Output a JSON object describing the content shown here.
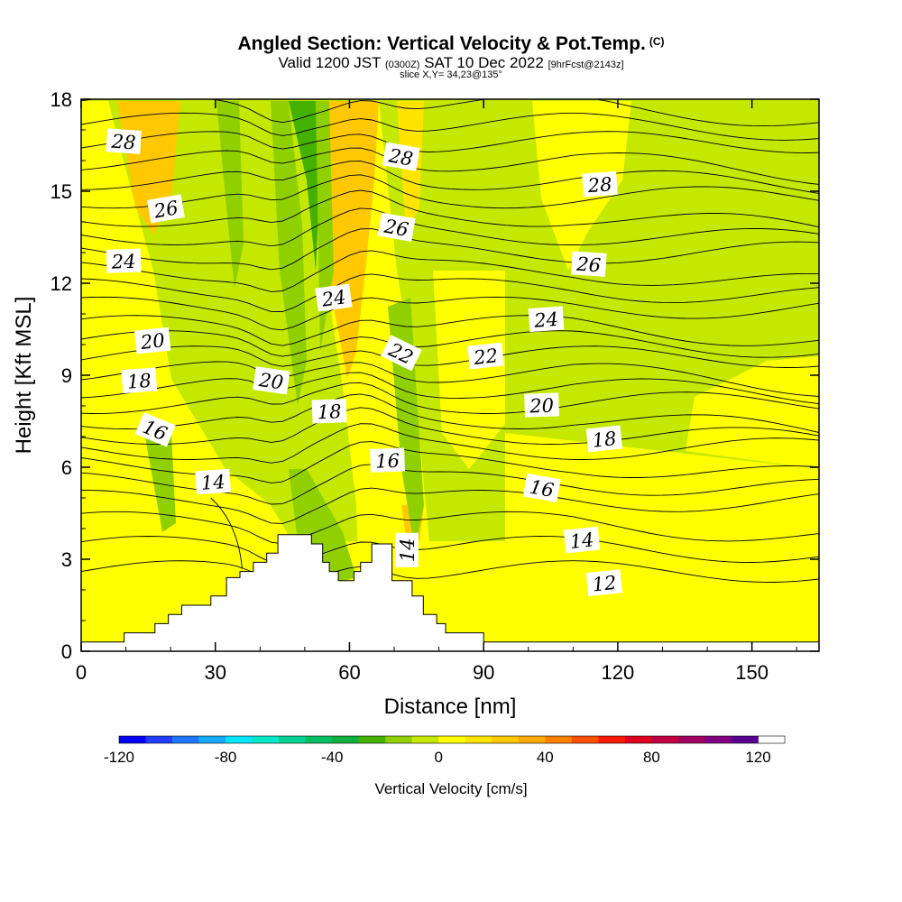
{
  "title": {
    "main": "Angled Section: Vertical Velocity & Pot.Temp.",
    "mark": "(C)",
    "valid_prefix": "Valid 1200 JST",
    "valid_utc": "(0300Z)",
    "valid_date": "SAT 10 Dec 2022",
    "forecast": "[9hrFcst@2143z]",
    "slice": "slice X,Y= 34,23@135°"
  },
  "colors": {
    "terrain": "#ffffff",
    "contour": "#000000",
    "colorbar": [
      "#0000ff",
      "#1f3cff",
      "#1e78ff",
      "#18aaff",
      "#00e6ff",
      "#00e8c6",
      "#00d090",
      "#00c060",
      "#10b040",
      "#44b000",
      "#90d000",
      "#c4e800",
      "#ffff00",
      "#ffe400",
      "#ffc800",
      "#ffa800",
      "#ff8000",
      "#ff5000",
      "#ff1a00",
      "#e00020",
      "#c00040",
      "#a00060",
      "#800080",
      "#580090"
    ]
  },
  "chart_data": {
    "type": "heatmap",
    "xlabel": "Distance [nm]",
    "ylabel": "Height [Kft MSL]",
    "xlim": [
      0,
      165
    ],
    "ylim": [
      0,
      18
    ],
    "x_ticks": [
      0,
      30,
      60,
      90,
      120,
      150
    ],
    "y_ticks": [
      0,
      3,
      6,
      9,
      12,
      15,
      18
    ],
    "grid": false,
    "colorbar": {
      "label": "Vertical Velocity [cm/s]",
      "range": [
        -120,
        130
      ],
      "step": 10,
      "ticks": [
        -120,
        -80,
        -40,
        0,
        40,
        80,
        120
      ]
    },
    "terrain_profile": [
      [
        0,
        0.3
      ],
      [
        9.6,
        0.3
      ],
      [
        9.6,
        0.6
      ],
      [
        16.5,
        0.6
      ],
      [
        16.5,
        0.9
      ],
      [
        19.5,
        0.9
      ],
      [
        19.5,
        1.2
      ],
      [
        22.5,
        1.2
      ],
      [
        22.5,
        1.5
      ],
      [
        29,
        1.5
      ],
      [
        29,
        1.8
      ],
      [
        32.5,
        1.8
      ],
      [
        32.5,
        2.4
      ],
      [
        35.5,
        2.4
      ],
      [
        35.5,
        2.6
      ],
      [
        38.5,
        2.6
      ],
      [
        38.5,
        2.9
      ],
      [
        41.5,
        2.9
      ],
      [
        41.5,
        3.2
      ],
      [
        44,
        3.2
      ],
      [
        44,
        3.8
      ],
      [
        51.5,
        3.8
      ],
      [
        51.5,
        3.5
      ],
      [
        54,
        3.5
      ],
      [
        54,
        2.9
      ],
      [
        55.5,
        2.9
      ],
      [
        55.5,
        2.6
      ],
      [
        57.5,
        2.6
      ],
      [
        57.5,
        2.3
      ],
      [
        61,
        2.3
      ],
      [
        61,
        2.6
      ],
      [
        62.5,
        2.6
      ],
      [
        62.5,
        2.9
      ],
      [
        65,
        2.9
      ],
      [
        65,
        3.5
      ],
      [
        69.5,
        3.5
      ],
      [
        69.5,
        2.3
      ],
      [
        74,
        2.3
      ],
      [
        74,
        1.8
      ],
      [
        76.5,
        1.8
      ],
      [
        76.5,
        1.2
      ],
      [
        79.5,
        1.2
      ],
      [
        79.5,
        0.9
      ],
      [
        81.5,
        0.9
      ],
      [
        81.5,
        0.6
      ],
      [
        90,
        0.6
      ],
      [
        90,
        0.3
      ],
      [
        165,
        0.3
      ]
    ],
    "theta_contours": [
      {
        "label": "12",
        "label_at": [
          117,
          2.2
        ],
        "label_rot": -6
      },
      {
        "label": "14",
        "label_at": [
          112,
          3.6
        ],
        "label_rot": -6
      },
      {
        "label": "14",
        "label_at": [
          73,
          3.3
        ],
        "label_rot": -90
      },
      {
        "label": "14",
        "label_at": [
          29.5,
          5.5
        ],
        "label_rot": -4
      },
      {
        "label": "16",
        "label_at": [
          103,
          5.3
        ],
        "label_rot": 10
      },
      {
        "label": "16",
        "label_at": [
          68.5,
          6.2
        ],
        "label_rot": -2
      },
      {
        "label": "16",
        "label_at": [
          16.5,
          7.2
        ],
        "label_rot": 22
      },
      {
        "label": "18",
        "label_at": [
          117,
          6.9
        ],
        "label_rot": -6
      },
      {
        "label": "18",
        "label_at": [
          55.5,
          7.8
        ],
        "label_rot": -2
      },
      {
        "label": "18",
        "label_at": [
          13,
          8.8
        ],
        "label_rot": -4
      },
      {
        "label": "20",
        "label_at": [
          103,
          8.0
        ],
        "label_rot": -2
      },
      {
        "label": "20",
        "label_at": [
          42.5,
          8.8
        ],
        "label_rot": 8
      },
      {
        "label": "20",
        "label_at": [
          16,
          10.1
        ],
        "label_rot": -6
      },
      {
        "label": "22",
        "label_at": [
          90.5,
          9.6
        ],
        "label_rot": -6
      },
      {
        "label": "22",
        "label_at": [
          71.5,
          9.7
        ],
        "label_rot": 26
      },
      {
        "label": "24",
        "label_at": [
          104,
          10.8
        ],
        "label_rot": -4
      },
      {
        "label": "24",
        "label_at": [
          56.5,
          11.5
        ],
        "label_rot": -8
      },
      {
        "label": "24",
        "label_at": [
          9.5,
          12.7
        ],
        "label_rot": -2
      },
      {
        "label": "26",
        "label_at": [
          113.5,
          12.6
        ],
        "label_rot": 4
      },
      {
        "label": "26",
        "label_at": [
          70.5,
          13.8
        ],
        "label_rot": 10
      },
      {
        "label": "26",
        "label_at": [
          19,
          14.4
        ],
        "label_rot": -10
      },
      {
        "label": "28",
        "label_at": [
          116,
          15.2
        ],
        "label_rot": -4
      },
      {
        "label": "28",
        "label_at": [
          71.5,
          16.1
        ],
        "label_rot": 10
      },
      {
        "label": "28",
        "label_at": [
          9.5,
          16.6
        ],
        "label_rot": 4
      }
    ]
  }
}
